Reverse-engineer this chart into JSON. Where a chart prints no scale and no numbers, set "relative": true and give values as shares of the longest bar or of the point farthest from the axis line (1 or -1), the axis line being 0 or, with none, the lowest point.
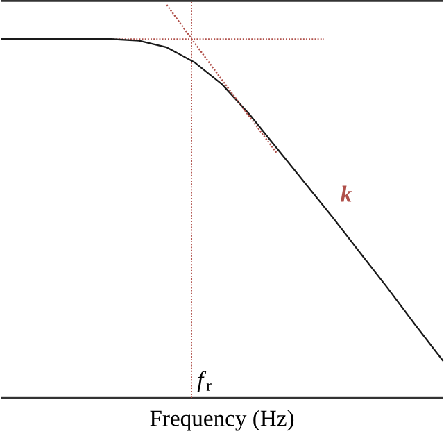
{
  "chart_data": {
    "type": "line",
    "relative": true,
    "xlabel": "Frequency (Hz)",
    "categories": [
      null,
      null,
      null,
      null,
      null,
      null,
      null,
      null,
      null,
      null,
      null,
      null,
      null,
      null,
      null,
      null,
      null
    ],
    "series": [
      {
        "color": "#1a1a1a",
        "line_style": "solid",
        "values": [
          0.913,
          0.913,
          0.913,
          0.913,
          0.913,
          0.909,
          0.892,
          0.854,
          0.798,
          0.721,
          0.634,
          0.547,
          0.46,
          0.369,
          0.279,
          0.185,
          0.094
        ]
      },
      {
        "color": "#b0504a",
        "line_style": "dotted",
        "values": [
          null,
          null,
          null,
          null,
          null,
          null,
          1.0,
          0.904,
          0.809,
          0.715,
          0.621,
          null,
          null,
          null,
          null,
          null,
          null
        ]
      }
    ],
    "ref_lines": [
      {
        "axis": "y",
        "value": 0.913,
        "color": "#b0504a",
        "line_style": "dotted"
      }
    ],
    "annotations": [
      "*f*$_{r}$",
      "k"
    ]
  }
}
